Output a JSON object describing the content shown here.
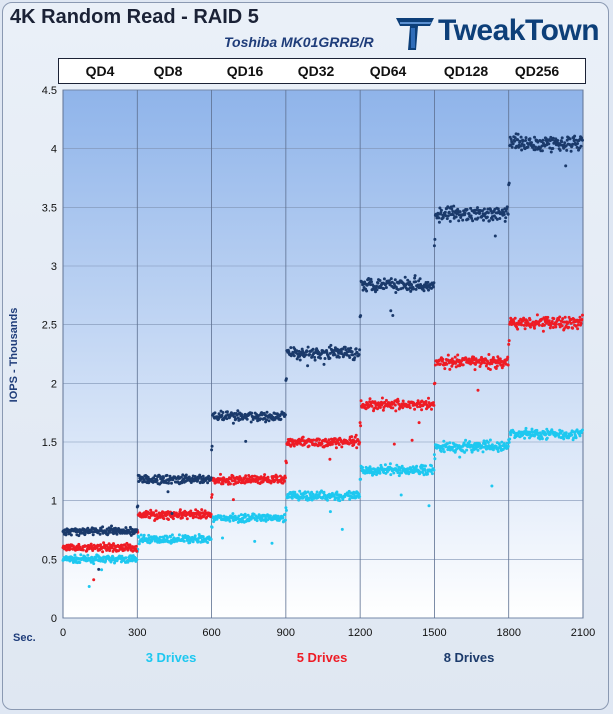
{
  "chart_data": {
    "type": "scatter",
    "title": "4K Random Read - RAID 5",
    "subtitle": "Toshiba MK01GRRB/R",
    "ylabel": "IOPS - Thousands",
    "xunit": "Sec.",
    "xlim": [
      0,
      2100
    ],
    "ylim": [
      0,
      4.5
    ],
    "x_ticks": [
      0,
      300,
      600,
      900,
      1200,
      1500,
      1800,
      2100
    ],
    "y_ticks": [
      0,
      0.5,
      1,
      1.5,
      2,
      2.5,
      3,
      3.5,
      4,
      4.5
    ],
    "grid": true,
    "legend_position": "bottom",
    "queue_depths": [
      "QD4",
      "QD8",
      "QD16",
      "QD32",
      "QD64",
      "QD128",
      "QD256"
    ],
    "segment_seconds": 300,
    "series": [
      {
        "name": "3 Drives",
        "color": "#1ec8f0",
        "levels": [
          0.5,
          0.67,
          0.85,
          1.04,
          1.26,
          1.46,
          1.57
        ]
      },
      {
        "name": "5 Drives",
        "color": "#ee1c25",
        "levels": [
          0.6,
          0.88,
          1.18,
          1.5,
          1.82,
          2.18,
          2.52
        ]
      },
      {
        "name": "8 Drives",
        "color": "#1b3a6b",
        "levels": [
          0.74,
          1.18,
          1.72,
          2.26,
          2.85,
          3.44,
          4.05
        ]
      }
    ]
  },
  "brand": {
    "logo_text": "TweakTown"
  }
}
